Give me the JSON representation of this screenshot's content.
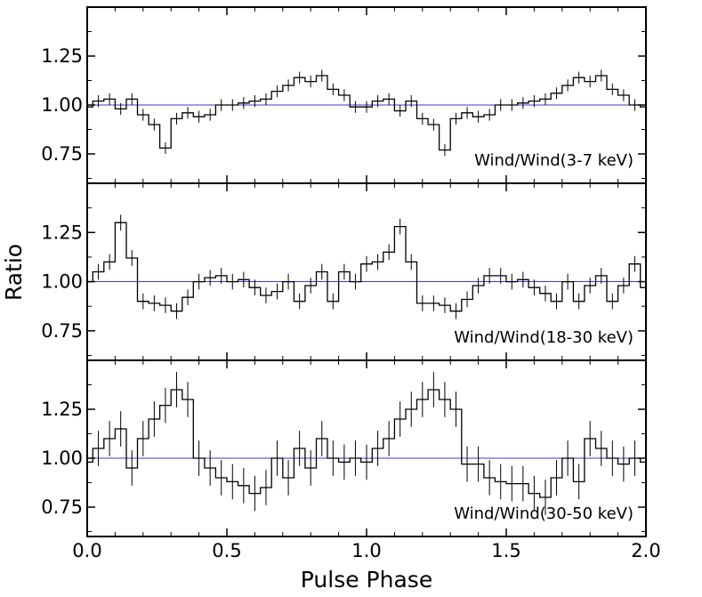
{
  "chart_data": {
    "type": "line",
    "xlabel": "Pulse Phase",
    "ylabel": "Ratio",
    "xlim": [
      0.0,
      2.0
    ],
    "xticks": [
      "0.0",
      "0.5",
      "1.0",
      "1.5",
      "2.0"
    ],
    "yticks": [
      "0.75",
      "1.00",
      "1.25"
    ],
    "reference_line": 1.0,
    "colors": {
      "data": "#000000",
      "reference": "#3b3bd6",
      "axes": "#000000"
    },
    "panels": [
      {
        "label": "Wind/Wind(3-7 keV)",
        "ylim": [
          0.6,
          1.5
        ],
        "x": [
          0.0,
          0.04,
          0.08,
          0.12,
          0.16,
          0.2,
          0.24,
          0.28,
          0.32,
          0.36,
          0.4,
          0.44,
          0.48,
          0.52,
          0.56,
          0.6,
          0.64,
          0.68,
          0.72,
          0.76,
          0.8,
          0.84,
          0.88,
          0.92,
          0.96,
          1.0,
          1.04,
          1.08,
          1.12,
          1.16,
          1.2,
          1.24,
          1.28,
          1.32,
          1.36,
          1.4,
          1.44,
          1.48,
          1.52,
          1.56,
          1.6,
          1.64,
          1.68,
          1.72,
          1.76,
          1.8,
          1.84,
          1.88,
          1.92,
          1.96,
          2.0
        ],
        "y": [
          0.99,
          1.02,
          1.03,
          0.98,
          1.03,
          0.95,
          0.9,
          0.78,
          0.93,
          0.96,
          0.94,
          0.95,
          1.0,
          1.0,
          1.01,
          1.02,
          1.03,
          1.07,
          1.1,
          1.14,
          1.12,
          1.15,
          1.08,
          1.05,
          0.99,
          0.99,
          1.02,
          1.03,
          0.97,
          1.02,
          0.93,
          0.9,
          0.77,
          0.93,
          0.96,
          0.94,
          0.95,
          1.0,
          1.0,
          1.01,
          1.02,
          1.03,
          1.06,
          1.1,
          1.14,
          1.12,
          1.15,
          1.08,
          1.05,
          1.0,
          0.99
        ],
        "err": 0.03
      },
      {
        "label": "Wind/Wind(18-30 keV)",
        "ylim": [
          0.6,
          1.5
        ],
        "x": [
          0.0,
          0.04,
          0.08,
          0.12,
          0.16,
          0.2,
          0.24,
          0.28,
          0.32,
          0.36,
          0.4,
          0.44,
          0.48,
          0.52,
          0.56,
          0.6,
          0.64,
          0.68,
          0.72,
          0.76,
          0.8,
          0.84,
          0.88,
          0.92,
          0.96,
          1.0,
          1.04,
          1.08,
          1.12,
          1.16,
          1.2,
          1.24,
          1.28,
          1.32,
          1.36,
          1.4,
          1.44,
          1.48,
          1.52,
          1.56,
          1.6,
          1.64,
          1.68,
          1.72,
          1.76,
          1.8,
          1.84,
          1.88,
          1.92,
          1.96,
          2.0
        ],
        "y": [
          1.0,
          1.05,
          1.1,
          1.3,
          1.12,
          0.9,
          0.89,
          0.88,
          0.85,
          0.92,
          1.0,
          1.02,
          1.03,
          1.0,
          1.01,
          0.97,
          0.93,
          0.95,
          1.0,
          0.9,
          0.98,
          1.05,
          0.9,
          1.05,
          1.0,
          1.09,
          1.1,
          1.15,
          1.28,
          1.1,
          0.89,
          0.89,
          0.88,
          0.85,
          0.91,
          0.98,
          1.03,
          1.03,
          1.0,
          1.01,
          0.97,
          0.94,
          0.9,
          1.0,
          0.9,
          0.98,
          1.03,
          0.9,
          0.98,
          1.09,
          0.97
        ],
        "err": 0.04
      },
      {
        "label": "Wind/Wind(30-50 keV)",
        "ylim": [
          0.6,
          1.5
        ],
        "x": [
          0.0,
          0.04,
          0.08,
          0.12,
          0.16,
          0.2,
          0.24,
          0.28,
          0.32,
          0.36,
          0.4,
          0.44,
          0.48,
          0.52,
          0.56,
          0.6,
          0.64,
          0.68,
          0.72,
          0.76,
          0.8,
          0.84,
          0.88,
          0.92,
          0.96,
          1.0,
          1.04,
          1.08,
          1.12,
          1.16,
          1.2,
          1.24,
          1.28,
          1.32,
          1.36,
          1.4,
          1.44,
          1.48,
          1.52,
          1.56,
          1.6,
          1.64,
          1.68,
          1.72,
          1.76,
          1.8,
          1.84,
          1.88,
          1.92,
          1.96,
          2.0
        ],
        "y": [
          0.98,
          1.05,
          1.1,
          1.15,
          0.95,
          1.1,
          1.2,
          1.27,
          1.35,
          1.3,
          1.0,
          0.95,
          0.9,
          0.88,
          0.86,
          0.82,
          0.85,
          1.0,
          0.9,
          1.05,
          0.95,
          1.1,
          1.0,
          0.98,
          1.0,
          0.98,
          1.05,
          1.1,
          1.2,
          1.25,
          1.3,
          1.35,
          1.3,
          1.25,
          0.97,
          0.97,
          0.9,
          0.88,
          0.87,
          0.87,
          0.82,
          0.8,
          0.9,
          1.0,
          0.88,
          1.1,
          1.05,
          1.0,
          0.97,
          1.0,
          0.98
        ],
        "err": 0.09
      }
    ]
  }
}
